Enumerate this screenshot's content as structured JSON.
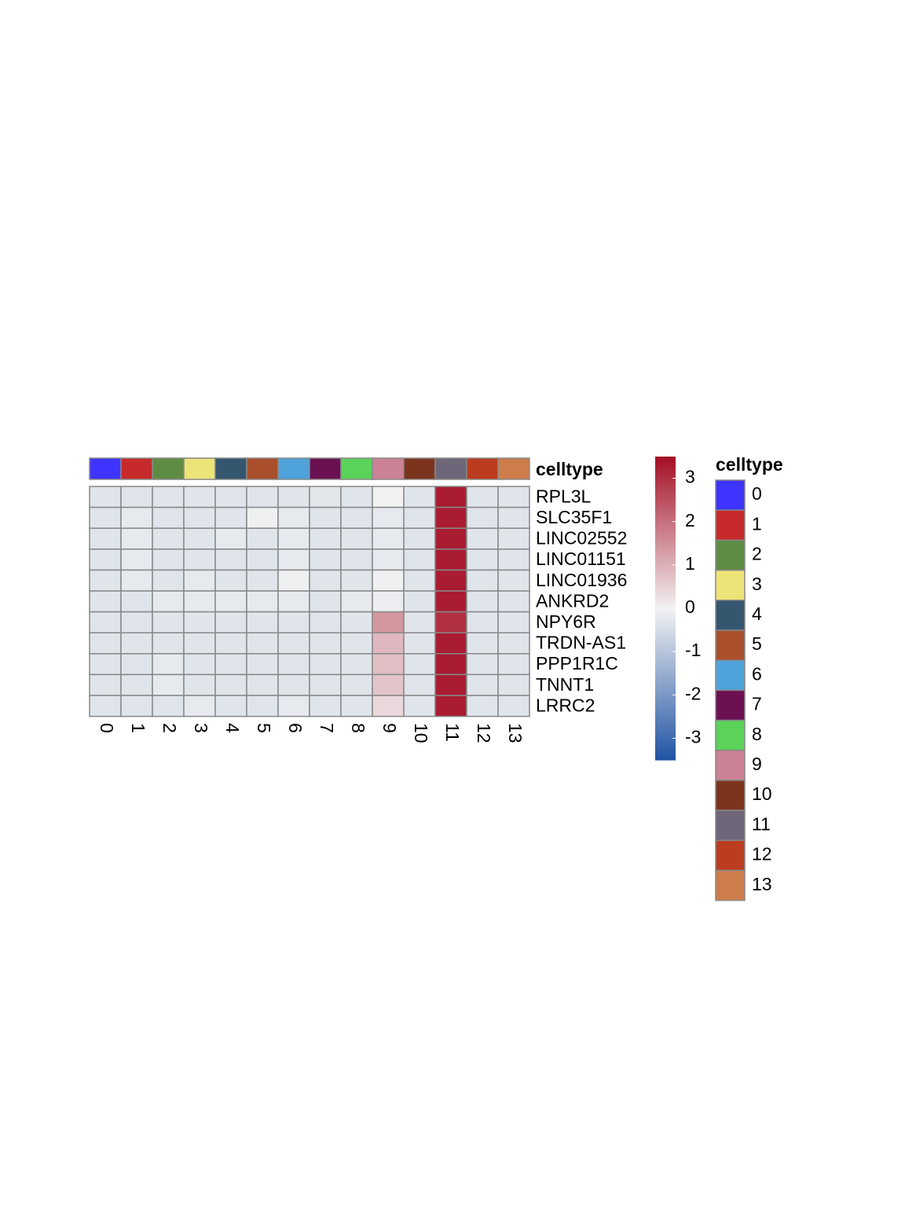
{
  "chart_data": {
    "type": "heatmap",
    "rows": [
      "RPL3L",
      "SLC35F1",
      "LINC02552",
      "LINC01151",
      "LINC01936",
      "ANKRD2",
      "NPY6R",
      "TRDN-AS1",
      "PPP1R1C",
      "TNNT1",
      "LRRC2"
    ],
    "columns": [
      "0",
      "1",
      "2",
      "3",
      "4",
      "5",
      "6",
      "7",
      "8",
      "9",
      "10",
      "11",
      "12",
      "13"
    ],
    "values": [
      [
        -0.3,
        -0.3,
        -0.3,
        -0.3,
        -0.3,
        -0.3,
        -0.3,
        -0.25,
        -0.3,
        0.0,
        -0.3,
        3.3,
        -0.3,
        -0.3
      ],
      [
        -0.3,
        -0.2,
        -0.3,
        -0.3,
        -0.3,
        -0.05,
        -0.2,
        -0.3,
        -0.3,
        -0.2,
        -0.3,
        3.3,
        -0.3,
        -0.3
      ],
      [
        -0.3,
        -0.2,
        -0.3,
        -0.3,
        -0.2,
        -0.3,
        -0.2,
        -0.3,
        -0.3,
        -0.2,
        -0.3,
        3.3,
        -0.3,
        -0.3
      ],
      [
        -0.3,
        -0.2,
        -0.3,
        -0.3,
        -0.3,
        -0.3,
        -0.2,
        -0.3,
        -0.3,
        -0.2,
        -0.3,
        3.3,
        -0.3,
        -0.3
      ],
      [
        -0.3,
        -0.2,
        -0.3,
        -0.2,
        -0.3,
        -0.3,
        -0.05,
        -0.3,
        -0.3,
        -0.05,
        -0.3,
        3.3,
        -0.3,
        -0.3
      ],
      [
        -0.3,
        -0.3,
        -0.2,
        -0.2,
        -0.2,
        -0.2,
        -0.2,
        -0.3,
        -0.2,
        -0.1,
        -0.3,
        3.3,
        -0.3,
        -0.3
      ],
      [
        -0.3,
        -0.3,
        -0.3,
        -0.3,
        -0.3,
        -0.3,
        -0.3,
        -0.3,
        -0.3,
        1.4,
        -0.3,
        3.0,
        -0.3,
        -0.3
      ],
      [
        -0.3,
        -0.3,
        -0.3,
        -0.3,
        -0.3,
        -0.3,
        -0.3,
        -0.3,
        -0.3,
        0.9,
        -0.3,
        3.3,
        -0.3,
        -0.3
      ],
      [
        -0.3,
        -0.3,
        -0.2,
        -0.3,
        -0.3,
        -0.3,
        -0.3,
        -0.3,
        -0.3,
        0.8,
        -0.3,
        3.3,
        -0.3,
        -0.3
      ],
      [
        -0.3,
        -0.3,
        -0.2,
        -0.3,
        -0.3,
        -0.3,
        -0.3,
        -0.3,
        -0.3,
        0.7,
        -0.3,
        3.3,
        -0.3,
        -0.3
      ],
      [
        -0.3,
        -0.3,
        -0.3,
        -0.2,
        -0.3,
        -0.3,
        -0.2,
        -0.3,
        -0.3,
        0.4,
        -0.3,
        3.3,
        -0.3,
        -0.3
      ]
    ],
    "annotation": {
      "title": "celltype",
      "colors": [
        "#3f33ff",
        "#c62a2a",
        "#5f8c45",
        "#ede477",
        "#35566f",
        "#a94f2c",
        "#4fa3db",
        "#6b1152",
        "#5bd35a",
        "#cc8296",
        "#7d341d",
        "#6e6679",
        "#bb3c1f",
        "#cd7d4a"
      ]
    },
    "colorscale": {
      "low": "#2053a3",
      "mid": "#f2f2f2",
      "high": "#a50f26"
    },
    "zlim": [
      -3.5,
      3.5
    ],
    "colorbar_ticks": [
      -3,
      -2,
      -1,
      0,
      1,
      2,
      3
    ]
  }
}
